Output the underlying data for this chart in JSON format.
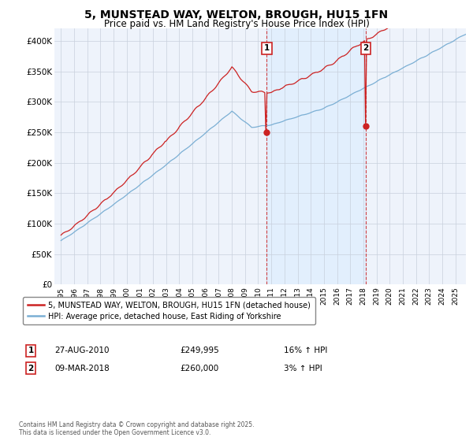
{
  "title": "5, MUNSTEAD WAY, WELTON, BROUGH, HU15 1FN",
  "subtitle": "Price paid vs. HM Land Registry's House Price Index (HPI)",
  "title_fontsize": 10,
  "subtitle_fontsize": 8.5,
  "ylabel_ticks": [
    "£0",
    "£50K",
    "£100K",
    "£150K",
    "£200K",
    "£250K",
    "£300K",
    "£350K",
    "£400K"
  ],
  "ytick_values": [
    0,
    50000,
    100000,
    150000,
    200000,
    250000,
    300000,
    350000,
    400000
  ],
  "ylim": [
    0,
    420000
  ],
  "hpi_color": "#7bafd4",
  "price_color": "#cc2222",
  "vline_color": "#cc2222",
  "shade_color": "#ddeeff",
  "background_color": "#eef3fb",
  "legend_label_red": "5, MUNSTEAD WAY, WELTON, BROUGH, HU15 1FN (detached house)",
  "legend_label_blue": "HPI: Average price, detached house, East Riding of Yorkshire",
  "sale1_year": 2010.65,
  "sale1_price": 249995,
  "sale1_date_str": "27-AUG-2010",
  "sale1_hpi_pct": "16% ↑ HPI",
  "sale2_year": 2018.19,
  "sale2_price": 260000,
  "sale2_date_str": "09-MAR-2018",
  "sale2_hpi_pct": "3% ↑ HPI",
  "footer": "Contains HM Land Registry data © Crown copyright and database right 2025.\nThis data is licensed under the Open Government Licence v3.0.",
  "xticklabels": [
    "1995",
    "1996",
    "1997",
    "1998",
    "1999",
    "2000",
    "2001",
    "2002",
    "2003",
    "2004",
    "2005",
    "2006",
    "2007",
    "2008",
    "2009",
    "2010",
    "2011",
    "2012",
    "2013",
    "2014",
    "2015",
    "2016",
    "2017",
    "2018",
    "2019",
    "2020",
    "2021",
    "2022",
    "2023",
    "2024",
    "2025"
  ]
}
